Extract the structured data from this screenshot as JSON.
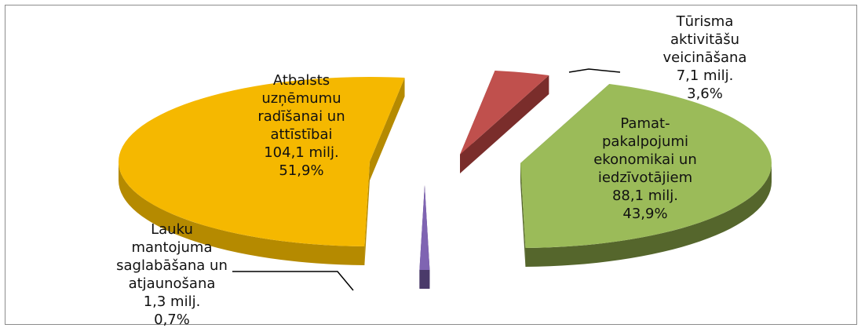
{
  "chart_data": {
    "type": "pie",
    "style": "3d-exploded",
    "legend": "none",
    "slices": [
      {
        "name": "Atbalsts uzņēmumu radīšanai un attīstībai",
        "label_lines": [
          "Atbalsts",
          "uzņēmumu",
          "radīšanai un",
          "attīstībai",
          "104,1 milj.",
          "51,9%"
        ],
        "value": 104.1,
        "percent": 51.9,
        "color": "#f5b800",
        "side_color": "#b58a00"
      },
      {
        "name": "Tūrisma aktivitāšu veicināšana",
        "label_lines": [
          "Tūrisma",
          "aktivitāšu",
          "veicināšana",
          "7,1 milj.",
          "3,6%"
        ],
        "value": 7.1,
        "percent": 3.6,
        "color": "#c0504d",
        "side_color": "#7a2d2b"
      },
      {
        "name": "Pamat-pakalpojumi ekonomikai un iedzīvotājiem",
        "label_lines": [
          "Pamat-",
          "pakalpojumi",
          "ekonomikai un",
          "iedzīvotājiem",
          "88,1 milj.",
          "43,9%"
        ],
        "value": 88.1,
        "percent": 43.9,
        "color": "#9bbb59",
        "side_color": "#55662c"
      },
      {
        "name": "Lauku mantojuma saglabāšana un atjaunošana",
        "label_lines": [
          "Lauku",
          "mantojuma",
          "saglabāšana un",
          "atjaunošana",
          "1,3 milj.",
          "0,7%"
        ],
        "value": 1.3,
        "percent": 0.7,
        "color": "#7f64b2",
        "side_color": "#4a3a6a"
      }
    ]
  }
}
